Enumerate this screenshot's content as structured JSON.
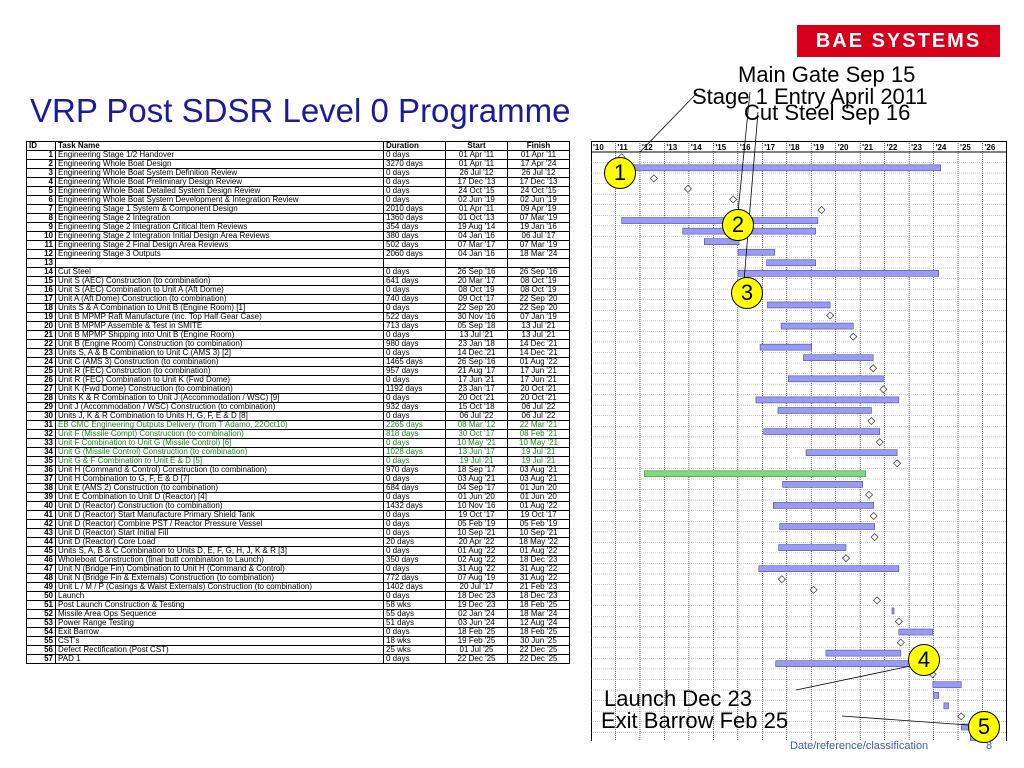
{
  "logo": "BAE SYSTEMS",
  "title": "VRP Post SDSR Level 0 Programme",
  "footer": "Date/reference/classification",
  "page_number": "8",
  "annotations": {
    "main_gate": "Main Gate Sep 15",
    "stage1_entry": "Stage 1 Entry April 2011",
    "cut_steel": "Cut Steel Sep 16",
    "launch": "Launch Dec 23",
    "exit_barrow": "Exit Barrow Feb 25"
  },
  "milestone_markers": [
    "1",
    "2",
    "3",
    "4",
    "5"
  ],
  "table": {
    "headers": [
      "ID",
      "Task Name",
      "Duration",
      "Start",
      "Finish"
    ],
    "rows": [
      [
        "1",
        "Engineering Stage 1/2 Handover",
        "0 days",
        "01 Apr '11",
        "01 Apr '11"
      ],
      [
        "2",
        "Engineering Whole Boat Design",
        "3270 days",
        "01 Apr '11",
        "17 Apr '24"
      ],
      [
        "3",
        "Engineering Whole Boat System Definition Review",
        "0 days",
        "26 Jul '12",
        "26 Jul '12"
      ],
      [
        "4",
        "Engineering Whole Boat Preliminary Design Review",
        "0 days",
        "17 Dec '13",
        "17 Dec '13"
      ],
      [
        "5",
        "Engineering Whole Boat Detailed System Design Review",
        "0 days",
        "24 Oct '15",
        "24 Oct '15"
      ],
      [
        "6",
        "Engineering Whole Boat System Development & Integration Review",
        "0 days",
        "02 Jun '19",
        "02 Jun '19"
      ],
      [
        "7",
        "Engineering Stage 1 System & Component Design",
        "2010 days",
        "01 Apr '11",
        "09 Apr '19"
      ],
      [
        "8",
        "Engineering Stage 2 Integration",
        "1360 days",
        "01 Oct '13",
        "07 Mar '19"
      ],
      [
        "9",
        "Engineering Stage 2 Integration Critical Item Reviews",
        "354 days",
        "19 Aug '14",
        "19 Jan '16"
      ],
      [
        "10",
        "Engineering Stage 2 Integration Initial Design Area Reviews",
        "380 days",
        "04 Jan '16",
        "06 Jul '17"
      ],
      [
        "11",
        "Engineering Stage 2 Final Design Area Reviews",
        "502 days",
        "07 Mar '17",
        "07 Mar '19"
      ],
      [
        "12",
        "Engineering Stage 3 Outputs",
        "2060 days",
        "04 Jan '16",
        "18 Mar '24"
      ],
      [
        "13",
        "",
        "",
        "",
        ""
      ],
      [
        "14",
        "Cut Steel",
        "0 days",
        "26 Sep '16",
        "26 Sep '16"
      ],
      [
        "15",
        "Unit S (AEC) Construction (to combination)",
        "641 days",
        "20 Mar '17",
        "08 Oct '19"
      ],
      [
        "16",
        "Unit S (AEC) Combination to Unit A (Aft Dome)",
        "0 days",
        "08 Oct '19",
        "08 Oct '19"
      ],
      [
        "17",
        "Unit A (Aft Dome) Construction (to combination)",
        "740 days",
        "09 Oct '17",
        "22 Sep '20"
      ],
      [
        "18",
        "Units S & A Combination to Unit B (Engine Room)    [1]",
        "0 days",
        "22 Sep '20",
        "22 Sep '20"
      ],
      [
        "19",
        "Unit B MPMP Raft Manufacture (inc. Top Half Gear Case)",
        "522 days",
        "30 Nov '16",
        "07 Jan '19"
      ],
      [
        "20",
        "Unit B MPMP Assemble & Test in SMITE",
        "713 days",
        "05 Sep '18",
        "13 Jul '21"
      ],
      [
        "21",
        "Unit B MPMP Shipping into Unit B (Engine Room)",
        "0 days",
        "13 Jul '21",
        "13 Jul '21"
      ],
      [
        "22",
        "Unit B (Engine Room) Construction (to combination)",
        "980 days",
        "23 Jan '18",
        "14 Dec '21"
      ],
      [
        "23",
        "Units S, A & B Combination to Unit C (AMS 3)    [2]",
        "0 days",
        "14 Dec '21",
        "14 Dec '21"
      ],
      [
        "24",
        "Unit C (AMS 3) Construction (to combination)",
        "1465 days",
        "26 Sep '16",
        "01 Aug '22"
      ],
      [
        "25",
        "Unit R (FEC) Construction (to combination)",
        "957 days",
        "21 Aug '17",
        "17 Jun '21"
      ],
      [
        "26",
        "Unit R (FEC) Combination to Unit K (Fwd Dome)",
        "0 days",
        "17 Jun '21",
        "17 Jun '21"
      ],
      [
        "27",
        "Unit K (Fwd Dome) Construction (to combination)",
        "1192 days",
        "23 Jan '17",
        "20 Oct '21"
      ],
      [
        "28",
        "Units K & R Combination to Unit J (Accommodation / WSC)    [9]",
        "0 days",
        "20 Oct '21",
        "20 Oct '21"
      ],
      [
        "29",
        "Unit J (Accommodation / WSC) Construction (to combination)",
        "932 days",
        "15 Oct '18",
        "06 Jul '22"
      ],
      [
        "30",
        "Units J, K & R Combination to Units H, G, F, E & D    [8]",
        "0 days",
        "06 Jul '22",
        "06 Jul '22"
      ],
      [
        "31",
        "EB CMC Engineering Outputs Delivery (from T Adamo, 22Oct10)",
        "2265 days",
        "08 Mar '12",
        "22 Mar '21"
      ],
      [
        "32",
        "Unit F (Missile Compt) Construction (to combination)",
        "818 days",
        "30 Oct '17",
        "08 Feb '21"
      ],
      [
        "33",
        "Unit F Combination to Unit G (Missile Control)    [6]",
        "0 days",
        "10 May '21",
        "10 May '21"
      ],
      [
        "34",
        "Unit G (Missile Control) Construction (to combination)",
        "1028 days",
        "13 Jun '17",
        "19 Jul '21"
      ],
      [
        "35",
        "Unit G & F Combination to Unit E & D    [5]",
        "0 days",
        "19 Jul '21",
        "19 Jul '21"
      ],
      [
        "36",
        "Unit H (Command & Control) Construction (to combination)",
        "970 days",
        "18 Sep '17",
        "03 Aug '21"
      ],
      [
        "37",
        "Unit H Combination to G, F, E & D    [7]",
        "0 days",
        "03 Aug '21",
        "03 Aug '21"
      ],
      [
        "38",
        "Unit E (AMS 2) Construction (to combination)",
        "684 days",
        "04 Sep '17",
        "01 Jun '20"
      ],
      [
        "39",
        "Unit E Combination to Unit D (Reactor)    [4]",
        "0 days",
        "01 Jun '20",
        "01 Jun '20"
      ],
      [
        "40",
        "Unit D (Reactor) Construction (to combination)",
        "1432 days",
        "10 Nov '16",
        "01 Aug '22"
      ],
      [
        "41",
        "Unit D (Reactor) Start Manufacture Primary Shield Tank",
        "0 days",
        "19 Oct '17",
        "19 Oct '17"
      ],
      [
        "42",
        "Unit D (Reactor) Combine PST / Reactor Pressure Vessel",
        "0 days",
        "05 Feb '19",
        "05 Feb '19"
      ],
      [
        "43",
        "Unit D (Reactor) Start Initial Fill",
        "0 days",
        "10 Sep '21",
        "10 Sep '21"
      ],
      [
        "44",
        "Unit D (Reactor) Core Load",
        "20 days",
        "20 Apr '22",
        "18 May '22"
      ],
      [
        "45",
        "Units S, A, B & C Combination to Units D, E, F, G, H, J, K & R    [3]",
        "0 days",
        "01 Aug '22",
        "01 Aug '22"
      ],
      [
        "46",
        "Wholeboat Construction (final butt combination to Launch)",
        "350 days",
        "02 Aug '22",
        "18 Dec '23"
      ],
      [
        "47",
        "Unit N (Bridge Fin) Combination to Unit H (Command & Control)",
        "0 days",
        "31 Aug '22",
        "31 Aug '22"
      ],
      [
        "48",
        "Unit N (Bridge Fin & Externals) Construction (to combination)",
        "772 days",
        "07 Aug '19",
        "31 Aug '22"
      ],
      [
        "49",
        "Unit L / M / P (Casings & Waist Externals) Construction (to combination)",
        "1402 days",
        "20 Jul '17",
        "21 Feb '23"
      ],
      [
        "50",
        "Launch",
        "0 days",
        "18 Dec '23",
        "18 Dec '23"
      ],
      [
        "51",
        "Post Launch Construction & Testing",
        "58 wks",
        "19 Dec '23",
        "18 Feb '25"
      ],
      [
        "52",
        "Missile Area Ops Sequence",
        "55 days",
        "02 Jan '24",
        "18 Mar '24"
      ],
      [
        "53",
        "Power Range Testing",
        "51 days",
        "03 Jun '24",
        "12 Aug '24"
      ],
      [
        "54",
        "Exit Barrow",
        "0 days",
        "18 Feb '25",
        "18 Feb '25"
      ],
      [
        "55",
        "CST's",
        "18 wks",
        "19 Feb '25",
        "30 Jun '25"
      ],
      [
        "56",
        "Defect Rectification (Post CST)",
        "25 wks",
        "01 Jul '25",
        "22 Dec '25"
      ],
      [
        "57",
        "PAD 1",
        "0 days",
        "22 Dec '25",
        "22 Dec '25"
      ]
    ],
    "green_rows": [
      31,
      32,
      33,
      34,
      35
    ]
  },
  "chart_data": {
    "type": "gantt",
    "x_axis_years": [
      "'10",
      "'11",
      "'12",
      "'13",
      "'14",
      "'15",
      "'16",
      "'17",
      "'18",
      "'19",
      "'20",
      "'21",
      "'22",
      "'23",
      "'24",
      "'25",
      "'26"
    ],
    "xlim": [
      2010.0,
      2027.0
    ],
    "bar_color": "#9a9af0",
    "highlight_bar_color": "#7fd97f",
    "milestone_shape": "diamond",
    "tasks": [
      {
        "id": 1,
        "start": 2011.25,
        "end": 2011.25,
        "milestone": true
      },
      {
        "id": 2,
        "start": 2011.25,
        "end": 2024.29
      },
      {
        "id": 3,
        "start": 2012.57,
        "end": 2012.57,
        "milestone": true
      },
      {
        "id": 4,
        "start": 2013.96,
        "end": 2013.96,
        "milestone": true
      },
      {
        "id": 5,
        "start": 2015.81,
        "end": 2015.81,
        "milestone": true
      },
      {
        "id": 6,
        "start": 2019.42,
        "end": 2019.42,
        "milestone": true
      },
      {
        "id": 7,
        "start": 2011.25,
        "end": 2019.27
      },
      {
        "id": 8,
        "start": 2013.75,
        "end": 2019.18
      },
      {
        "id": 9,
        "start": 2014.63,
        "end": 2016.05
      },
      {
        "id": 10,
        "start": 2016.01,
        "end": 2017.51
      },
      {
        "id": 11,
        "start": 2017.18,
        "end": 2019.18
      },
      {
        "id": 12,
        "start": 2016.01,
        "end": 2024.21
      },
      {
        "id": 13,
        "empty": true
      },
      {
        "id": 14,
        "start": 2016.74,
        "end": 2016.74,
        "milestone": true
      },
      {
        "id": 15,
        "start": 2017.21,
        "end": 2019.77
      },
      {
        "id": 16,
        "start": 2019.77,
        "end": 2019.77,
        "milestone": true
      },
      {
        "id": 17,
        "start": 2017.77,
        "end": 2020.72
      },
      {
        "id": 18,
        "start": 2020.72,
        "end": 2020.72,
        "milestone": true
      },
      {
        "id": 19,
        "start": 2016.91,
        "end": 2019.02
      },
      {
        "id": 20,
        "start": 2018.68,
        "end": 2021.53
      },
      {
        "id": 21,
        "start": 2021.53,
        "end": 2021.53,
        "milestone": true
      },
      {
        "id": 22,
        "start": 2018.06,
        "end": 2021.95
      },
      {
        "id": 23,
        "start": 2021.95,
        "end": 2021.95,
        "milestone": true
      },
      {
        "id": 24,
        "start": 2016.74,
        "end": 2022.58
      },
      {
        "id": 25,
        "start": 2017.64,
        "end": 2021.46
      },
      {
        "id": 26,
        "start": 2021.46,
        "end": 2021.46,
        "milestone": true
      },
      {
        "id": 27,
        "start": 2017.06,
        "end": 2021.8
      },
      {
        "id": 28,
        "start": 2021.8,
        "end": 2021.8,
        "milestone": true
      },
      {
        "id": 29,
        "start": 2018.79,
        "end": 2022.51
      },
      {
        "id": 30,
        "start": 2022.51,
        "end": 2022.51,
        "milestone": true
      },
      {
        "id": 31,
        "start": 2012.18,
        "end": 2021.22,
        "highlight": true
      },
      {
        "id": 32,
        "start": 2017.83,
        "end": 2021.1
      },
      {
        "id": 33,
        "start": 2021.36,
        "end": 2021.36,
        "milestone": true
      },
      {
        "id": 34,
        "start": 2017.45,
        "end": 2021.55
      },
      {
        "id": 35,
        "start": 2021.55,
        "end": 2021.55,
        "milestone": true
      },
      {
        "id": 36,
        "start": 2017.71,
        "end": 2021.59
      },
      {
        "id": 37,
        "start": 2021.59,
        "end": 2021.59,
        "milestone": true
      },
      {
        "id": 38,
        "start": 2017.67,
        "end": 2020.42
      },
      {
        "id": 39,
        "start": 2020.42,
        "end": 2020.42,
        "milestone": true
      },
      {
        "id": 40,
        "start": 2016.86,
        "end": 2022.58
      },
      {
        "id": 41,
        "start": 2017.8,
        "end": 2017.8,
        "milestone": true
      },
      {
        "id": 42,
        "start": 2019.1,
        "end": 2019.1,
        "milestone": true
      },
      {
        "id": 43,
        "start": 2021.69,
        "end": 2021.69,
        "milestone": true
      },
      {
        "id": 44,
        "start": 2022.3,
        "end": 2022.38
      },
      {
        "id": 45,
        "start": 2022.58,
        "end": 2022.58,
        "milestone": true
      },
      {
        "id": 46,
        "start": 2022.58,
        "end": 2023.96
      },
      {
        "id": 47,
        "start": 2022.66,
        "end": 2022.66,
        "milestone": true
      },
      {
        "id": 48,
        "start": 2019.6,
        "end": 2022.66
      },
      {
        "id": 49,
        "start": 2017.55,
        "end": 2023.14
      },
      {
        "id": 50,
        "start": 2023.96,
        "end": 2023.96,
        "milestone": true
      },
      {
        "id": 51,
        "start": 2023.97,
        "end": 2025.13
      },
      {
        "id": 52,
        "start": 2024.0,
        "end": 2024.21
      },
      {
        "id": 53,
        "start": 2024.42,
        "end": 2024.61
      },
      {
        "id": 54,
        "start": 2025.13,
        "end": 2025.13,
        "milestone": true
      },
      {
        "id": 55,
        "start": 2025.13,
        "end": 2025.49
      },
      {
        "id": 56,
        "start": 2025.5,
        "end": 2025.97
      },
      {
        "id": 57,
        "start": 2025.97,
        "end": 2025.97,
        "milestone": true
      }
    ]
  }
}
